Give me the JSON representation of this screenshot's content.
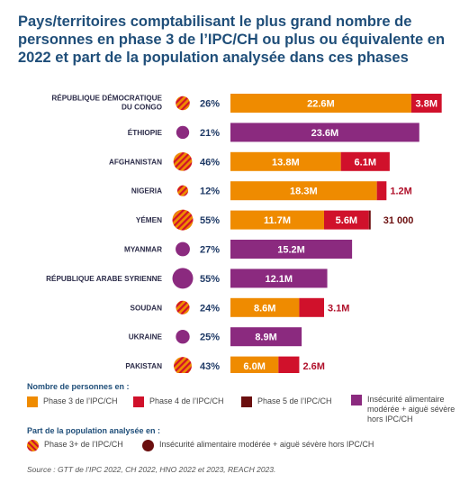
{
  "title": {
    "part1": "Pays/territoires comptabilisant le plus grand ",
    "bold1": "nombre de personnes en phase 3 de l’IPC/CH ou plus ou équivalente",
    "part2": " en 2022 et ",
    "bold2": "part de la population analysée dans ces phases"
  },
  "colors": {
    "phase3": "#ef8b00",
    "phase4": "#d0112b",
    "phase5": "#6b0f0f",
    "moderate": "#8b2a7f",
    "stripe": "#d0112b",
    "title": "#1f4e79"
  },
  "chart_data": {
    "type": "bar",
    "orientation": "horizontal",
    "stacked": true,
    "categories": [
      "RÉPUBLIQUE DÉMOCRATIQUE|DU CONGO",
      "ÉTHIOPIE",
      "AFGHANISTAN",
      "NIGERIA",
      "YÉMEN",
      "MYANMAR",
      "RÉPUBLIQUE ARABE SYRIENNE",
      "SOUDAN",
      "UKRAINE",
      "PAKISTAN"
    ],
    "series": [
      {
        "name": "Phase 3 de l’IPC/CH",
        "values": [
          22.6,
          null,
          13.8,
          18.3,
          11.7,
          null,
          null,
          8.6,
          null,
          6.0
        ],
        "labels": [
          "22.6M",
          "",
          "13.8M",
          "18.3M",
          "11.7M",
          "",
          "",
          "8.6M",
          "",
          "6.0M"
        ]
      },
      {
        "name": "Phase 4 de l’IPC/CH",
        "values": [
          3.8,
          null,
          6.1,
          1.2,
          5.6,
          null,
          null,
          3.1,
          null,
          2.6
        ],
        "labels": [
          "3.8M",
          "",
          "6.1M",
          "1.2M",
          "5.6M",
          "",
          "",
          "3.1M",
          "",
          "2.6M"
        ]
      },
      {
        "name": "Phase 5 de l’IPC/CH",
        "values": [
          null,
          null,
          null,
          null,
          0.031,
          null,
          null,
          null,
          null,
          null
        ],
        "labels": [
          "",
          "",
          "",
          "",
          "31 000",
          "",
          "",
          "",
          "",
          ""
        ]
      },
      {
        "name": "Insécurité alimentaire modérée + aiguë sévère hors IPC/CH",
        "values": [
          null,
          23.6,
          null,
          null,
          null,
          15.2,
          12.1,
          null,
          8.9,
          null
        ],
        "labels": [
          "",
          "23.6M",
          "",
          "",
          "",
          "15.2M",
          "12.1M",
          "",
          "8.9M",
          ""
        ]
      }
    ],
    "share": {
      "values": [
        26,
        21,
        46,
        12,
        55,
        27,
        55,
        24,
        25,
        43
      ],
      "labels": [
        "26%",
        "21%",
        "46%",
        "12%",
        "55%",
        "27%",
        "55%",
        "24%",
        "25%",
        "43%"
      ],
      "kind": [
        "ipc",
        "moderate",
        "ipc",
        "ipc",
        "ipc",
        "moderate",
        "moderate",
        "ipc",
        "moderate",
        "ipc"
      ]
    },
    "xlim": [
      0,
      27
    ]
  },
  "legend": {
    "count_heading": "Nombre de personnes en :",
    "count_items": [
      {
        "label": "Phase 3 de l’IPC/CH",
        "key": "phase3"
      },
      {
        "label": "Phase 4 de l’IPC/CH",
        "key": "phase4"
      },
      {
        "label": "Phase 5 de l’IPC/CH",
        "key": "phase5"
      },
      {
        "label": "Insécurité alimentaire modérée + aiguë sévère hors IPC/CH",
        "key": "moderate"
      }
    ],
    "share_heading": "Part de la population analysée en :",
    "share_items": [
      {
        "label": "Phase 3+ de l’IPC/CH",
        "key": "ipc"
      },
      {
        "label": "Insécurité alimentaire modérée + aiguë sévère hors IPC/CH",
        "key": "moderate"
      }
    ]
  },
  "source": "Source : GTT de l’IPC 2022, CH 2022, HNO 2022 et 2023, REACH 2023."
}
